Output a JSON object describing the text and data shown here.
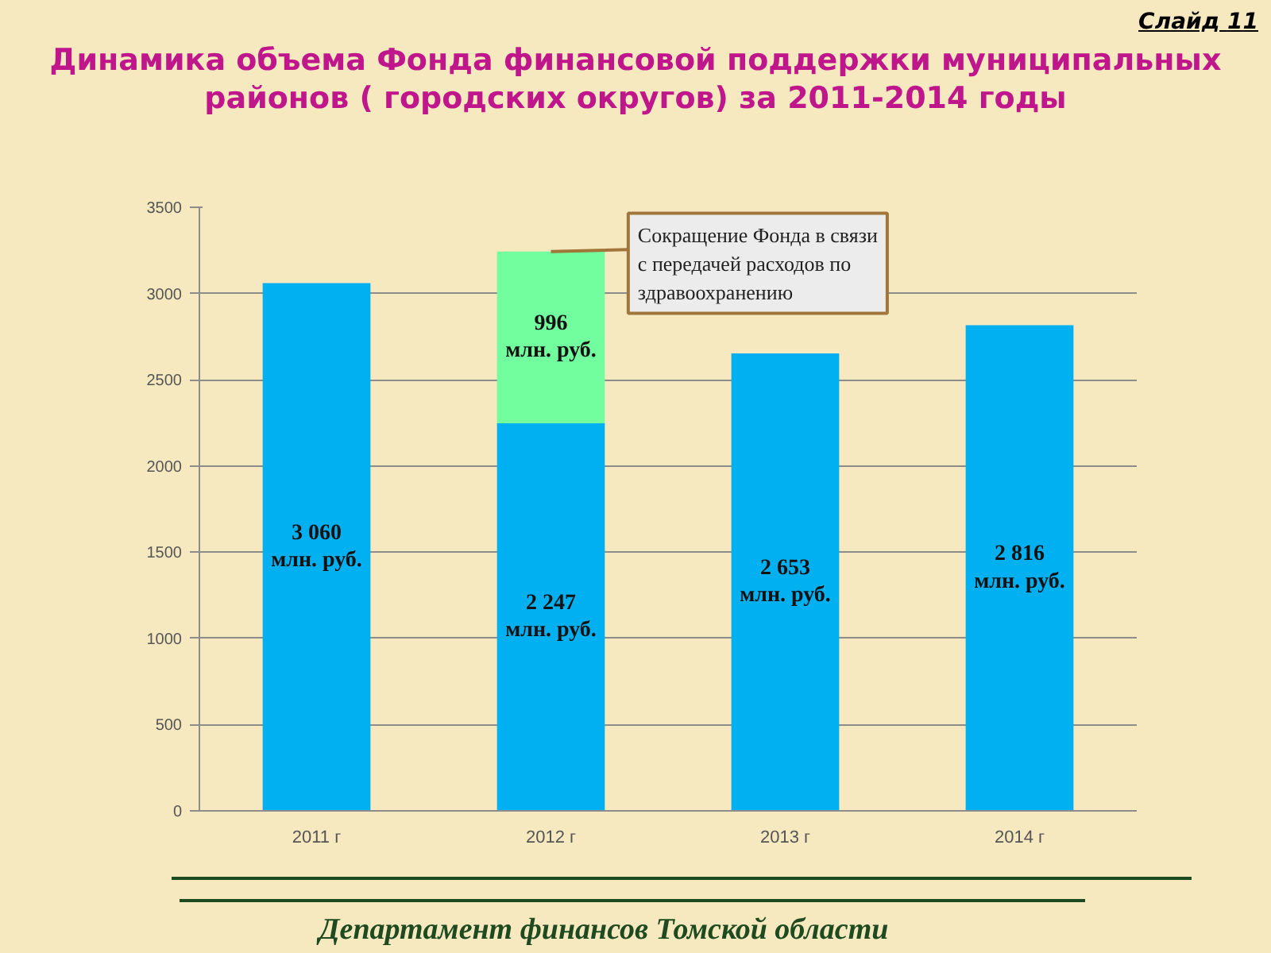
{
  "chart_data": {
    "type": "bar",
    "title": "Динамика объема Фонда финансовой поддержки муниципальных районов ( городских округов) за 2011-2014 годы",
    "categories": [
      "2011 г",
      "2012 г",
      "2013 г",
      "2014 г"
    ],
    "series": [
      {
        "color": "#00b0f0",
        "values": [
          3060,
          2247,
          2653,
          2816
        ],
        "value_labels": [
          "3 060\nмлн. руб.",
          "2 247\nмлн. руб.",
          "2 653\nмлн. руб.",
          "2 816\nмлн. руб."
        ]
      },
      {
        "color": "#72fd9f",
        "values": [
          null,
          996,
          null,
          null
        ],
        "value_labels": [
          null,
          "996\nмлн. руб.",
          null,
          null
        ]
      }
    ],
    "stacked": true,
    "ylim": [
      0,
      3500
    ],
    "yticks": [
      0,
      500,
      1000,
      1500,
      2000,
      2500,
      3000,
      3500
    ],
    "grid": "y",
    "annotations": [
      "Слайд 11",
      {
        "text": "Сокращение Фонда в связи с передачей расходов по здравоохранению",
        "x": "2012 г",
        "y": 3243
      },
      "Департамент финансов Томской области"
    ]
  }
}
